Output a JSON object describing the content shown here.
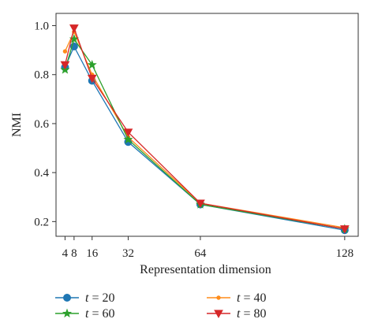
{
  "chart_data": {
    "type": "line",
    "title": "",
    "xlabel": "Representation dimension",
    "ylabel": "NMI",
    "x": [
      4,
      8,
      16,
      32,
      64,
      128
    ],
    "xticks": [
      4,
      8,
      16,
      32,
      64,
      128
    ],
    "yticks": [
      0.2,
      0.4,
      0.6,
      0.8,
      1.0
    ],
    "ytick_labels": [
      "0.2",
      "0.4",
      "0.6",
      "0.8",
      "1.0"
    ],
    "xlim": [
      0,
      134
    ],
    "ylim": [
      0.14,
      1.05
    ],
    "grid": false,
    "legend_position": "bottom",
    "series": [
      {
        "name": "t = 20",
        "marker": "circle",
        "color": "#1f77b4",
        "values": [
          0.83,
          0.915,
          0.775,
          0.525,
          0.27,
          0.165
        ]
      },
      {
        "name": "t = 40",
        "marker": "dot",
        "color": "#ff8c1a",
        "values": [
          0.895,
          0.975,
          0.8,
          0.545,
          0.275,
          0.175
        ]
      },
      {
        "name": "t = 60",
        "marker": "star",
        "color": "#2ca02c",
        "values": [
          0.82,
          0.945,
          0.84,
          0.535,
          0.27,
          0.17
        ]
      },
      {
        "name": "t = 80",
        "marker": "triangle",
        "color": "#d62728",
        "values": [
          0.84,
          0.99,
          0.785,
          0.565,
          0.275,
          0.17
        ]
      }
    ]
  }
}
